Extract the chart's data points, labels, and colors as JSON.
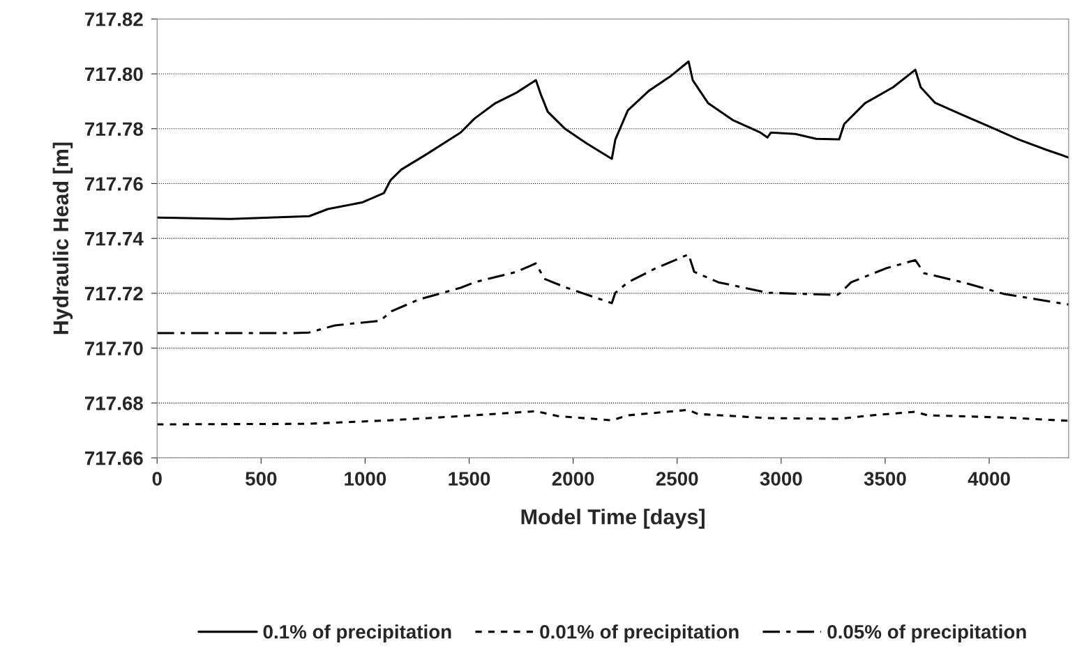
{
  "chart_data": {
    "type": "line",
    "xlabel": "Model Time [days]",
    "ylabel": "Hydraulic Head [m]",
    "xlim": [
      0,
      4382
    ],
    "xticks": [
      0,
      500,
      1000,
      1500,
      2000,
      2500,
      3000,
      3500,
      4000
    ],
    "ylim": [
      717.66,
      717.82
    ],
    "yticks": [
      {
        "value": 717.66,
        "label": "717.66"
      },
      {
        "value": 717.68,
        "label": "717.68"
      },
      {
        "value": 717.7,
        "label": "717.70"
      },
      {
        "value": 717.72,
        "label": "717.72"
      },
      {
        "value": 717.74,
        "label": "717.74"
      },
      {
        "value": 717.76,
        "label": "717.76"
      },
      {
        "value": 717.78,
        "label": "717.78"
      },
      {
        "value": 717.8,
        "label": "717.80"
      },
      {
        "value": 717.82,
        "label": "717.82"
      }
    ],
    "grid": "y",
    "legend": "bottom",
    "marker": "none",
    "series": [
      {
        "name": "0.1% of precipitation",
        "color": "#000000",
        "line_style": "solid",
        "x": [
          0,
          352,
          731,
          821,
          989,
          1090,
          1123,
          1174,
          1291,
          1459,
          1526,
          1626,
          1727,
          1821,
          1844,
          1878,
          1962,
          2062,
          2186,
          2203,
          2263,
          2364,
          2464,
          2555,
          2575,
          2649,
          2766,
          2900,
          2934,
          2951,
          3068,
          3169,
          3279,
          3303,
          3403,
          3538,
          3645,
          3671,
          3739,
          3873,
          4007,
          4141,
          4275,
          4382
        ],
        "values": [
          717.7476,
          717.7471,
          717.7481,
          717.7507,
          717.7532,
          717.7565,
          717.7613,
          717.7651,
          717.7705,
          717.7786,
          717.7837,
          717.7893,
          717.7931,
          717.7977,
          717.7926,
          717.7862,
          717.7799,
          717.7748,
          717.769,
          717.7761,
          717.7867,
          717.7938,
          717.7989,
          717.8045,
          717.7977,
          717.7893,
          717.7832,
          717.7786,
          717.7768,
          717.7786,
          717.7781,
          717.7763,
          717.7761,
          717.7817,
          717.7893,
          717.7951,
          717.8015,
          717.7951,
          717.7895,
          717.785,
          717.7806,
          717.7761,
          717.7723,
          717.7695
        ]
      },
      {
        "name": "0.01% of precipitation",
        "color": "#000000",
        "line_style": "dashed",
        "x": [
          0,
          721,
          1123,
          1459,
          1821,
          1928,
          2186,
          2263,
          2555,
          2599,
          2934,
          3279,
          3437,
          3645,
          3705,
          4074,
          4382
        ],
        "values": [
          717.6722,
          717.6724,
          717.6737,
          717.6752,
          717.677,
          717.6752,
          717.6737,
          717.6755,
          717.6775,
          717.676,
          717.6745,
          717.6742,
          717.6755,
          717.6768,
          717.6755,
          717.6747,
          717.6735
        ]
      },
      {
        "name": "0.05% of precipitation",
        "color": "#000000",
        "line_style": "dashdot",
        "x": [
          0,
          654,
          731,
          855,
          1073,
          1123,
          1257,
          1459,
          1526,
          1727,
          1821,
          1861,
          1962,
          2186,
          2203,
          2263,
          2397,
          2555,
          2582,
          2699,
          2934,
          3269,
          3286,
          3336,
          3504,
          3645,
          3688,
          3873,
          4074,
          4382
        ],
        "values": [
          717.7055,
          717.7055,
          717.7057,
          717.7083,
          717.71,
          717.7133,
          717.7177,
          717.722,
          717.724,
          717.7278,
          717.7309,
          717.7253,
          717.7222,
          717.7164,
          717.7202,
          717.724,
          717.7291,
          717.7342,
          717.7278,
          717.724,
          717.7202,
          717.7194,
          717.7202,
          717.724,
          717.7291,
          717.7321,
          717.7273,
          717.724,
          717.7197,
          717.7159
        ]
      }
    ]
  }
}
